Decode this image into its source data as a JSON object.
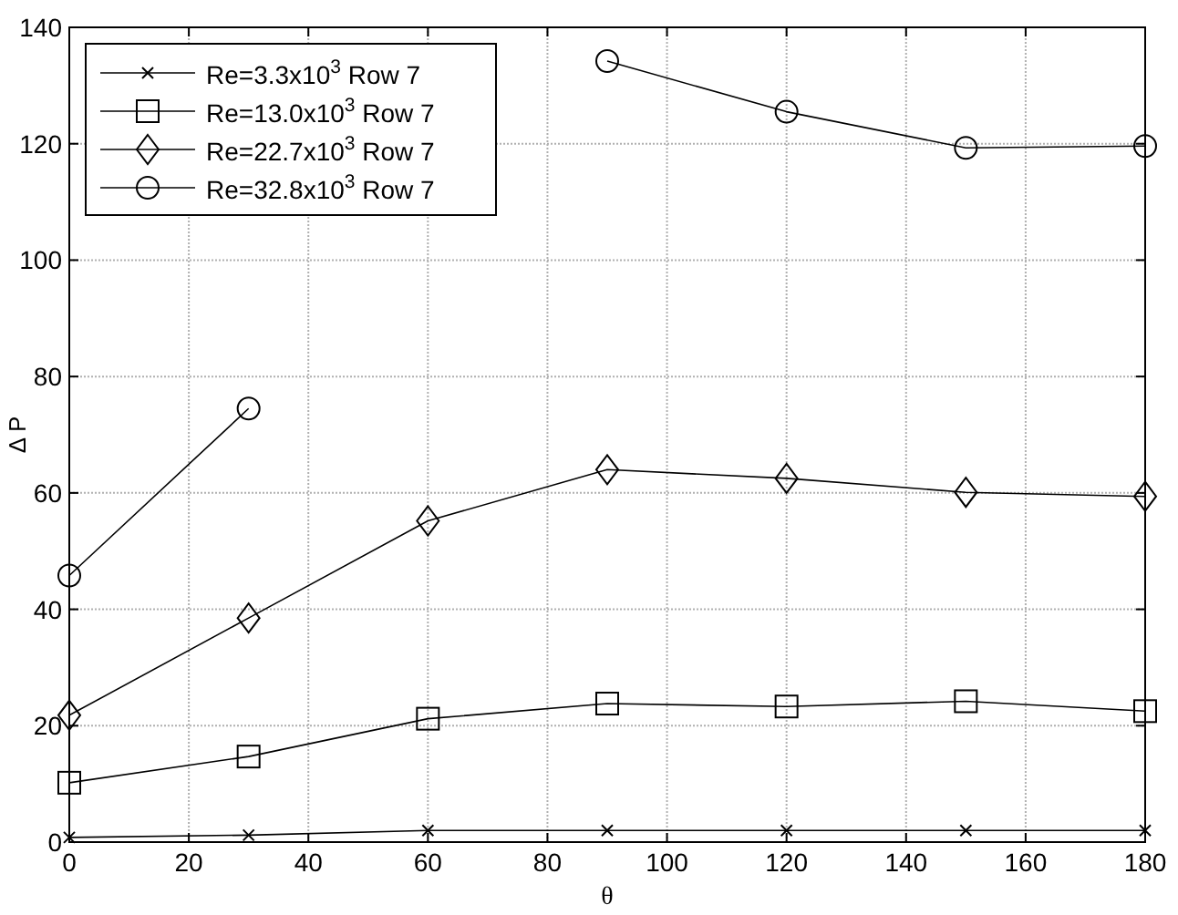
{
  "chart_data": {
    "type": "line",
    "xlabel": "θ",
    "ylabel": "Δ P",
    "x": [
      0,
      30,
      60,
      90,
      120,
      150,
      180
    ],
    "xlim": [
      0,
      180
    ],
    "xticks": [
      0,
      20,
      40,
      60,
      80,
      100,
      120,
      140,
      160,
      180
    ],
    "ylim": [
      0,
      140
    ],
    "yticks": [
      0,
      20,
      40,
      60,
      80,
      100,
      120,
      140
    ],
    "grid": true,
    "legend": "top left",
    "line_style": "solid",
    "series": [
      {
        "name": "Re=3.3x10$^{3}$ Row 7",
        "color": "#000000",
        "marker": "cross",
        "values": [
          0.8,
          1.2,
          2,
          2,
          2,
          2,
          2
        ]
      },
      {
        "name": "Re=13.0x10$^{3}$ Row 7",
        "color": "#000000",
        "marker": "square",
        "values": [
          10.2,
          14.7,
          21.2,
          23.8,
          23.3,
          24.2,
          22.5
        ]
      },
      {
        "name": "Re=22.7x10$^{3}$ Row 7",
        "color": "#000000",
        "marker": "diamond",
        "values": [
          21.8,
          38.5,
          55.2,
          64,
          62.5,
          60.1,
          59.4
        ]
      },
      {
        "name": "Re=32.8x10$^{3}$ Row 7",
        "color": "#000000",
        "marker": "circle",
        "values": [
          45.8,
          74.5,
          null,
          134.2,
          125.5,
          119.3,
          119.6
        ]
      }
    ]
  }
}
